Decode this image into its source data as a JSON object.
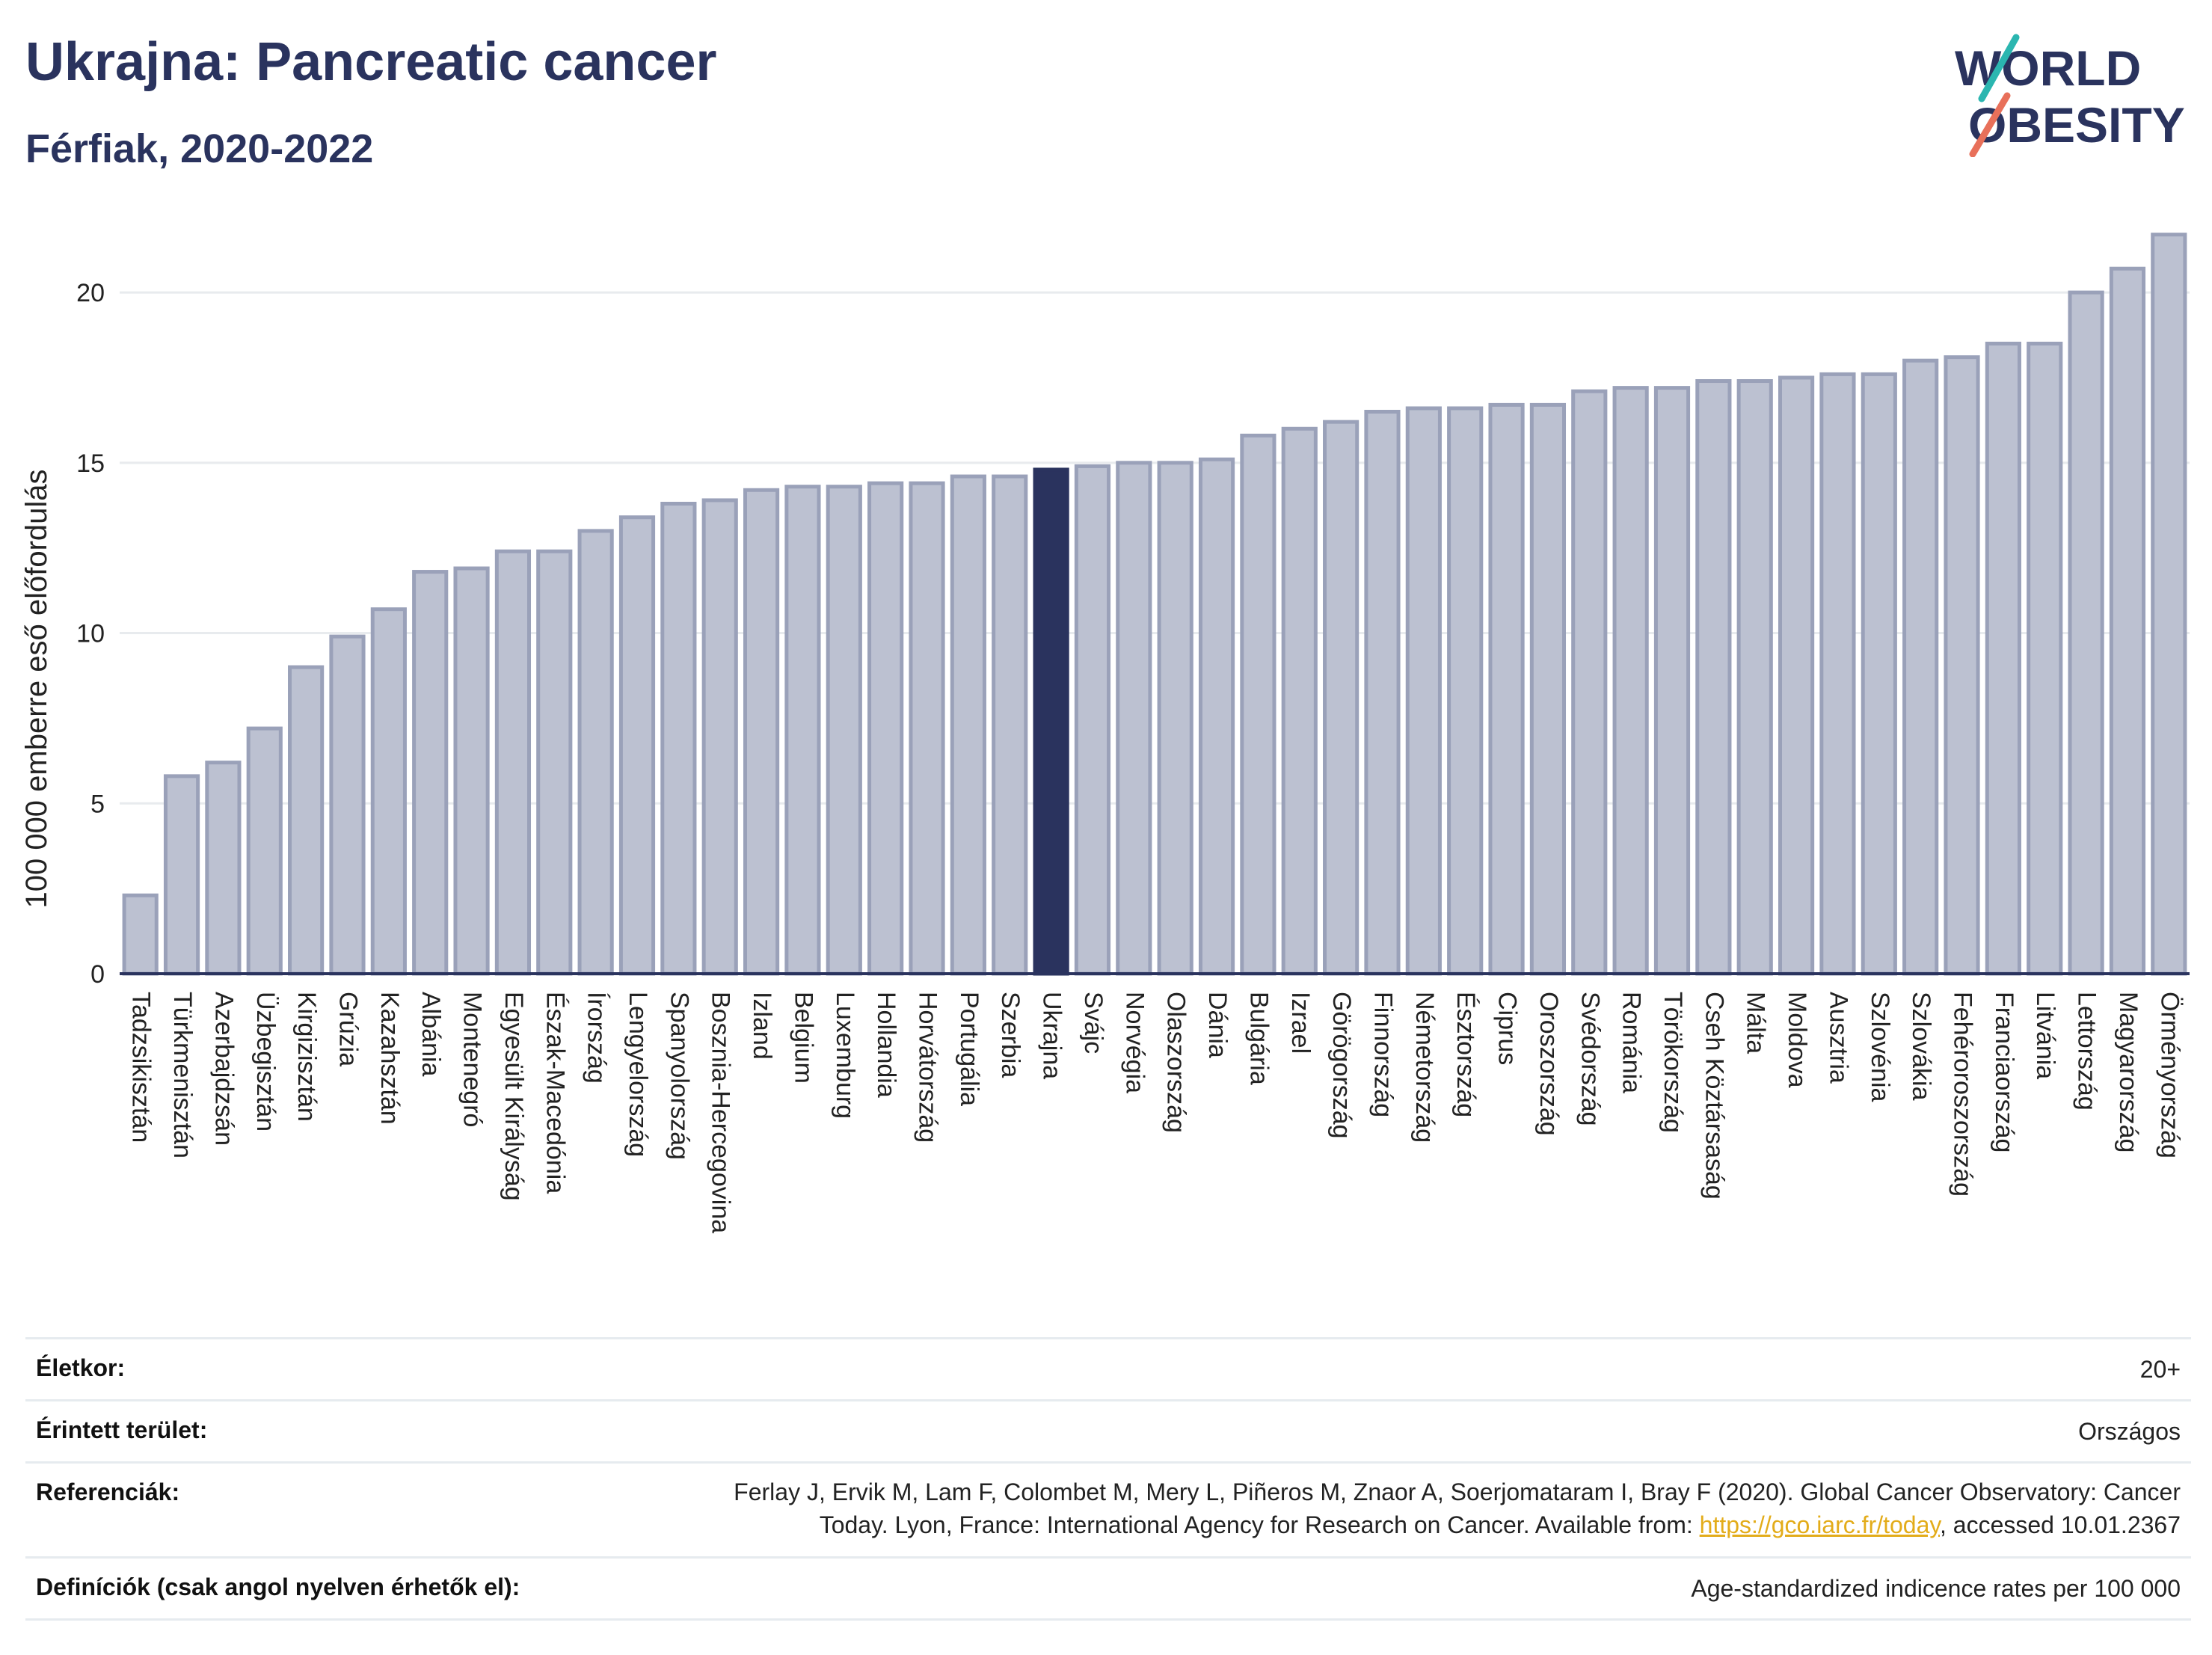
{
  "header": {
    "title": "Ukrajna: Pancreatic cancer",
    "subtitle": "Férfiak, 2020-2022",
    "logo_line1": "WORLD",
    "logo_line2": "OBESITY"
  },
  "colors": {
    "bar": "#bcc1d1",
    "bar_stroke": "#9aa1b9",
    "highlight": "#2a335e",
    "text": "#2a335e",
    "grid": "#e8ebee",
    "logo_teal": "#2bb6b0",
    "logo_coral": "#e8705a"
  },
  "chart_data": {
    "type": "bar",
    "ylabel": "100 000 emberre eső előfordulás",
    "ylim": [
      0,
      22
    ],
    "yticks": [
      0,
      5,
      10,
      15,
      20
    ],
    "grid": true,
    "highlight": "Ukrajna",
    "categories": [
      "Tadzsikisztán",
      "Türkmenisztán",
      "Azerbajdzsán",
      "Üzbegisztán",
      "Kirgizisztán",
      "Grúzia",
      "Kazahsztán",
      "Albánia",
      "Montenegró",
      "Egyesült Királyság",
      "Észak-Macedónia",
      "Írország",
      "Lengyelország",
      "Spanyolország",
      "Bosznia-Hercegovina",
      "Izland",
      "Belgium",
      "Luxemburg",
      "Hollandia",
      "Horvátország",
      "Portugália",
      "Szerbia",
      "Ukrajna",
      "Svájc",
      "Norvégia",
      "Olaszország",
      "Dánia",
      "Bulgária",
      "Izrael",
      "Görögország",
      "Finnország",
      "Németország",
      "Észtország",
      "Ciprus",
      "Oroszország",
      "Svédország",
      "Románia",
      "Törökország",
      "Cseh Köztársaság",
      "Málta",
      "Moldova",
      "Ausztria",
      "Szlovénia",
      "Szlovákia",
      "Fehéroroszország",
      "Franciaország",
      "Litvánia",
      "Lettország",
      "Magyarország",
      "Örményország"
    ],
    "values": [
      2.3,
      5.8,
      6.2,
      7.2,
      9.0,
      9.9,
      10.7,
      11.8,
      11.9,
      12.4,
      12.4,
      13.0,
      13.4,
      13.8,
      13.9,
      14.2,
      14.3,
      14.3,
      14.4,
      14.4,
      14.6,
      14.6,
      14.8,
      14.9,
      15.0,
      15.0,
      15.1,
      15.8,
      16.0,
      16.2,
      16.5,
      16.6,
      16.6,
      16.7,
      16.7,
      17.1,
      17.2,
      17.2,
      17.4,
      17.4,
      17.5,
      17.6,
      17.6,
      18.0,
      18.1,
      18.5,
      18.5,
      20.0,
      20.7,
      21.7
    ]
  },
  "info": {
    "age_label": "Életkor:",
    "age_value": "20+",
    "area_label": "Érintett terület:",
    "area_value": "Országos",
    "ref_label": "Referenciák:",
    "ref_line1": "Ferlay J, Ervik M, Lam F, Colombet M, Mery L, Piñeros M, Znaor A, Soerjomataram I, Bray F (2020). Global Cancer Observatory: Cancer",
    "ref_line2_pre": "Today. Lyon, France: International Agency for Research on Cancer. Available from: ",
    "ref_link": "https://gco.iarc.fr/today",
    "ref_line2_post": ", accessed 10.01.2367",
    "def_label": "Definíciók (csak angol nyelven érhetők el):",
    "def_value": "Age-standardized indicence rates per 100 000"
  }
}
